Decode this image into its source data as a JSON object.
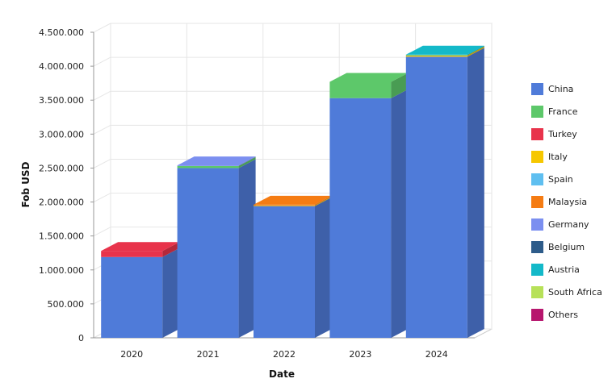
{
  "chart_data": {
    "type": "bar",
    "stacked": true,
    "three_d": true,
    "xlabel": "Date",
    "ylabel": "Fob USD",
    "categories": [
      "2020",
      "2021",
      "2022",
      "2023",
      "2024"
    ],
    "ylim": [
      0,
      4500000
    ],
    "yticks": [
      0,
      500000,
      1000000,
      1500000,
      2000000,
      2500000,
      3000000,
      3500000,
      4000000,
      4500000
    ],
    "ytick_labels": [
      "0",
      "500.000",
      "1.000.000",
      "1.500.000",
      "2.000.000",
      "2.500.000",
      "3.000.000",
      "3.500.000",
      "4.000.000",
      "4.500.000"
    ],
    "grid": true,
    "legend_position": "right",
    "series": [
      {
        "name": "China",
        "color": "#4f7bd9",
        "values": [
          1190000,
          2500000,
          1940000,
          3530000,
          4140000
        ]
      },
      {
        "name": "France",
        "color": "#5dc86a",
        "values": [
          0,
          30000,
          0,
          240000,
          0
        ]
      },
      {
        "name": "Turkey",
        "color": "#e8334b",
        "values": [
          90000,
          0,
          0,
          0,
          0
        ]
      },
      {
        "name": "Italy",
        "color": "#f6c700",
        "values": [
          0,
          0,
          10000,
          0,
          20000
        ]
      },
      {
        "name": "Spain",
        "color": "#5fbff0",
        "values": [
          0,
          0,
          0,
          0,
          0
        ]
      },
      {
        "name": "Malaysia",
        "color": "#f57c13",
        "values": [
          0,
          0,
          10000,
          0,
          0
        ]
      },
      {
        "name": "Germany",
        "color": "#7b8ff0",
        "values": [
          0,
          10000,
          0,
          0,
          0
        ]
      },
      {
        "name": "Belgium",
        "color": "#2e5c8a",
        "values": [
          0,
          0,
          0,
          0,
          0
        ]
      },
      {
        "name": "Austria",
        "color": "#14b9c9",
        "values": [
          0,
          0,
          0,
          0,
          10000
        ]
      },
      {
        "name": "South Africa",
        "color": "#b7e159",
        "values": [
          0,
          0,
          0,
          0,
          0
        ]
      },
      {
        "name": "Others",
        "color": "#b7166e",
        "values": [
          0,
          0,
          0,
          0,
          0
        ]
      }
    ]
  }
}
